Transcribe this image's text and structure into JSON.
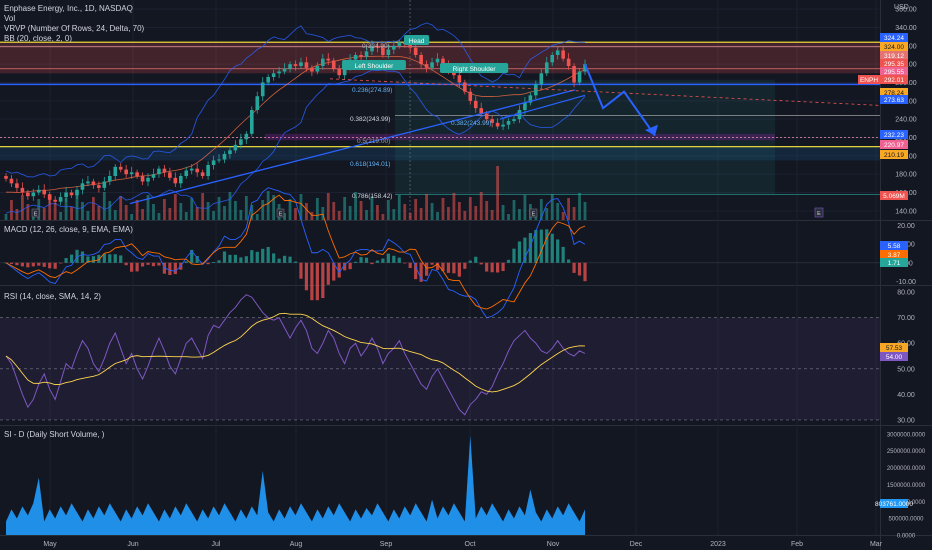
{
  "header": {
    "title": "Enphase Energy, Inc., 1D, NASDAQ",
    "vol": "Vol",
    "vrvp": "VRVP (Number Of Rows, 24, Delta, 70)",
    "bb": "BB (20, close, 2, 0)",
    "currency": "USD"
  },
  "colors": {
    "background": "#131722",
    "up": "#26a69a",
    "down": "#ef5350",
    "blue": "#2962ff",
    "yellow": "#ffeb3b",
    "rsi": "#7e57c2",
    "short_volume": "#2196f3"
  },
  "annotations": {
    "head": "Head",
    "left_shoulder": "Left Shoulder",
    "right_shoulder": "Right Shoulder",
    "fib_0": "0(324.90)",
    "fib_0236": "0.236(274.89)",
    "fib_0382": "0.382(243.99)",
    "fib_05": "0.5(219.00)",
    "fib_0618": "0.618(194.01)",
    "fib_0786": "0.786(158.42)",
    "fib_0382b": "0.382(243.99)"
  },
  "price_badges": {
    "b1": "324.24",
    "b2": "324.00",
    "b3": "319.12",
    "b4": "295.35",
    "b5": "295.55",
    "ticker": "ENPH",
    "last": "292.01",
    "b6": "278.24",
    "b7": "273.63",
    "b8": "232.23",
    "b9": "220.97",
    "b10": "210.19",
    "b11": "5.069M"
  },
  "macd": {
    "label": "MACD (12, 26, close, 9, EMA, EMA)",
    "v1": "5.58",
    "v2": "3.87",
    "v3": "1.71"
  },
  "rsi": {
    "label": "RSI (14, close, SMA, 14, 2)",
    "v1": "57.53",
    "v2": "54.00"
  },
  "si": {
    "label": "SI - D (Daily Short Volume, )",
    "v1": "803761.0000"
  },
  "event_markers": {
    "e": "E"
  },
  "chart_data": [
    {
      "type": "candlestick",
      "title": "Enphase Energy, Inc., 1D, NASDAQ",
      "x": [
        "May",
        "Jun",
        "Jul",
        "Aug",
        "Sep",
        "Oct",
        "Nov",
        "Dec",
        "2023",
        "Feb",
        "Mar"
      ],
      "ylabel": "USD",
      "ylim": [
        130,
        370
      ],
      "yticks": [
        140,
        160,
        180,
        200,
        220,
        240,
        260,
        280,
        300,
        320,
        340,
        360
      ],
      "close_series": [
        175,
        170,
        165,
        160,
        156,
        160,
        163,
        158,
        152,
        150,
        155,
        160,
        157,
        163,
        170,
        172,
        168,
        165,
        172,
        178,
        188,
        185,
        180,
        182,
        178,
        172,
        176,
        180,
        186,
        182,
        176,
        170,
        178,
        184,
        186,
        182,
        178,
        190,
        195,
        196,
        202,
        206,
        212,
        218,
        224,
        250,
        265,
        280,
        286,
        290,
        292,
        295,
        300,
        298,
        302,
        296,
        292,
        298,
        306,
        304,
        295,
        288,
        296,
        305,
        310,
        308,
        314,
        320,
        318,
        310,
        316,
        320,
        324,
        322,
        318,
        310,
        300,
        296,
        302,
        306,
        300,
        292,
        288,
        280,
        270,
        260,
        252,
        246,
        240,
        236,
        232,
        234,
        238,
        240,
        250,
        258,
        266,
        278,
        290,
        302,
        310,
        315,
        306,
        298,
        280,
        292,
        300
      ]
    },
    {
      "type": "bar",
      "title": "MACD (12, 26, close, 9, EMA, EMA)",
      "yticks": [
        -10,
        0,
        10,
        20
      ],
      "ylim": [
        -12,
        22
      ]
    },
    {
      "type": "line",
      "title": "RSI (14, close, SMA, 14, 2)",
      "ylim": [
        28,
        82
      ],
      "yticks": [
        30,
        40,
        50,
        60,
        70,
        80
      ],
      "values": [
        55,
        52,
        46,
        40,
        35,
        38,
        44,
        48,
        42,
        38,
        45,
        52,
        50,
        56,
        61,
        58,
        52,
        49,
        54,
        60,
        64,
        58,
        52,
        56,
        50,
        46,
        51,
        57,
        62,
        57,
        51,
        48,
        54,
        60,
        62,
        58,
        54,
        63,
        67,
        66,
        69,
        72,
        74,
        77,
        79,
        78,
        75,
        72,
        70,
        69,
        70,
        66,
        62,
        66,
        69,
        65,
        58,
        56,
        60,
        65,
        62,
        56,
        52,
        58,
        60,
        55,
        58,
        62,
        58,
        52,
        56,
        58,
        61,
        56,
        52,
        48,
        44,
        42,
        47,
        50,
        46,
        42,
        38,
        34,
        32,
        36,
        38,
        41,
        40,
        43,
        48,
        52,
        57,
        61,
        63,
        65,
        62,
        60,
        57,
        56,
        58,
        61,
        58,
        56,
        55,
        57,
        56
      ]
    },
    {
      "type": "area",
      "title": "SI - D (Daily Short Volume, )",
      "ylim": [
        0,
        3200000
      ],
      "yticks": [
        0,
        500000,
        1000000,
        1500000,
        2000000,
        2500000,
        3000000
      ]
    }
  ]
}
